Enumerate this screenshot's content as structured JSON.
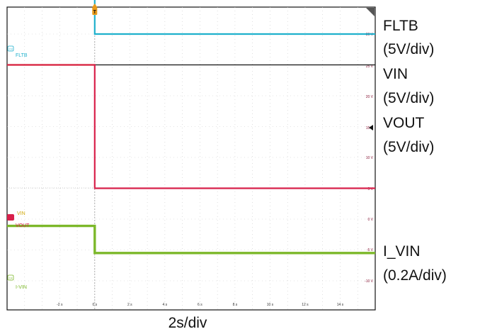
{
  "chart_data": {
    "type": "line",
    "x_scale_label": "2s/div",
    "trigger_marker": "T",
    "x": {
      "range": [
        -5,
        16
      ],
      "unit": "s",
      "tick_labels": [
        "-2 s",
        "0 s",
        "2 s",
        "4 s",
        "6 s",
        "8 s",
        "10 s",
        "12 s",
        "14 s"
      ],
      "tick_values": [
        -2,
        0,
        2,
        4,
        6,
        8,
        10,
        12,
        14
      ]
    },
    "right_axis_labels": [
      "30 V",
      "25 V",
      "20 V",
      "15 V",
      "10 V",
      "5 V",
      "0 V",
      "-5 V",
      "-10 V"
    ],
    "grid": true,
    "series": [
      {
        "name": "FLTB",
        "channel": "C3",
        "scale": "(5V/div)",
        "color": "#1fb0cc",
        "x": [
          -5,
          0,
          0,
          16
        ],
        "y_div": [
          7.85,
          7.85,
          6.0,
          6.0
        ]
      },
      {
        "name": "VIN",
        "channel": "C1",
        "scale": "(5V/div)",
        "color": "#e6c21e",
        "x": [
          -5,
          16
        ],
        "y_div": [
          5.0,
          5.0
        ]
      },
      {
        "name": "VOUT",
        "channel": "C2",
        "scale": "(5V/div)",
        "color": "#d8204a",
        "x": [
          -5,
          0,
          0,
          16
        ],
        "y_div": [
          5.0,
          5.0,
          1.0,
          1.0
        ]
      },
      {
        "name": "I_VIN",
        "channel": "C4",
        "label": "I-VIN",
        "scale": "(0.2A/div)",
        "color": "#7cb82a",
        "x": [
          -5,
          0,
          0,
          16
        ],
        "y_div": [
          -0.22,
          -0.22,
          -1.1,
          -1.1
        ]
      }
    ],
    "reference_line": {
      "color": "#111111",
      "x": [
        0,
        16
      ],
      "y_div": [
        5.0,
        5.0
      ]
    },
    "side_labels": [
      "FLTB",
      "(5V/div)",
      "VIN",
      "(5V/div)",
      "VOUT",
      "(5V/div)",
      "I_VIN",
      "(0.2A/div)"
    ]
  }
}
